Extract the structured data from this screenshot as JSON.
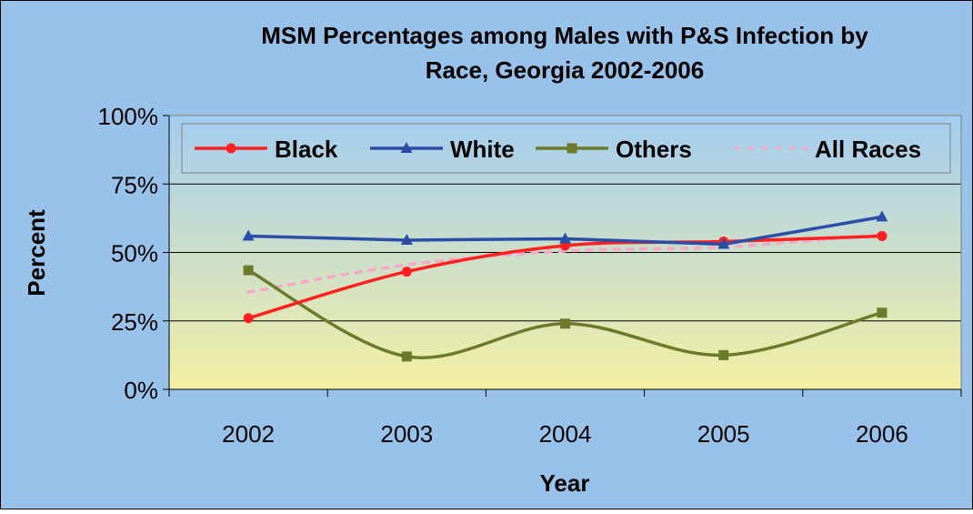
{
  "chart_data": {
    "type": "line",
    "title": "MSM Percentages among Males with P&S Infection by Race, Georgia 2002-2006",
    "title_lines": [
      "MSM Percentages among Males with P&S Infection by",
      "Race, Georgia 2002-2006"
    ],
    "xlabel": "Year",
    "ylabel": "Percent",
    "categories": [
      "2002",
      "2003",
      "2004",
      "2005",
      "2006"
    ],
    "ylim": [
      0,
      100
    ],
    "yticks": [
      0,
      25,
      50,
      75,
      100
    ],
    "ytick_labels": [
      "0%",
      "25%",
      "50%",
      "75%",
      "100%"
    ],
    "grid": "horizontal",
    "legend_position": "top",
    "series": [
      {
        "name": "Black",
        "values": [
          26,
          43,
          52.5,
          54,
          56
        ],
        "color": "#ff2020",
        "marker": "circle",
        "smooth": true,
        "dashed": false
      },
      {
        "name": "White",
        "values": [
          56,
          54.5,
          55,
          53,
          63
        ],
        "color": "#2a4ea8",
        "marker": "triangle",
        "smooth": false,
        "dashed": false
      },
      {
        "name": "Others",
        "values": [
          43.5,
          12,
          24,
          12.5,
          28
        ],
        "color": "#6b7b2a",
        "marker": "square",
        "smooth": true,
        "dashed": false
      },
      {
        "name": "All Races",
        "values": [
          35.5,
          45.5,
          50.5,
          52,
          56.5
        ],
        "color": "#f7a8c8",
        "marker": "none",
        "smooth": true,
        "dashed": true
      }
    ],
    "colors": {
      "background": "#99c2ea",
      "plot_top": "#a3cdf0",
      "plot_bottom": "#f4f0a4",
      "gridline": "#000000"
    }
  }
}
